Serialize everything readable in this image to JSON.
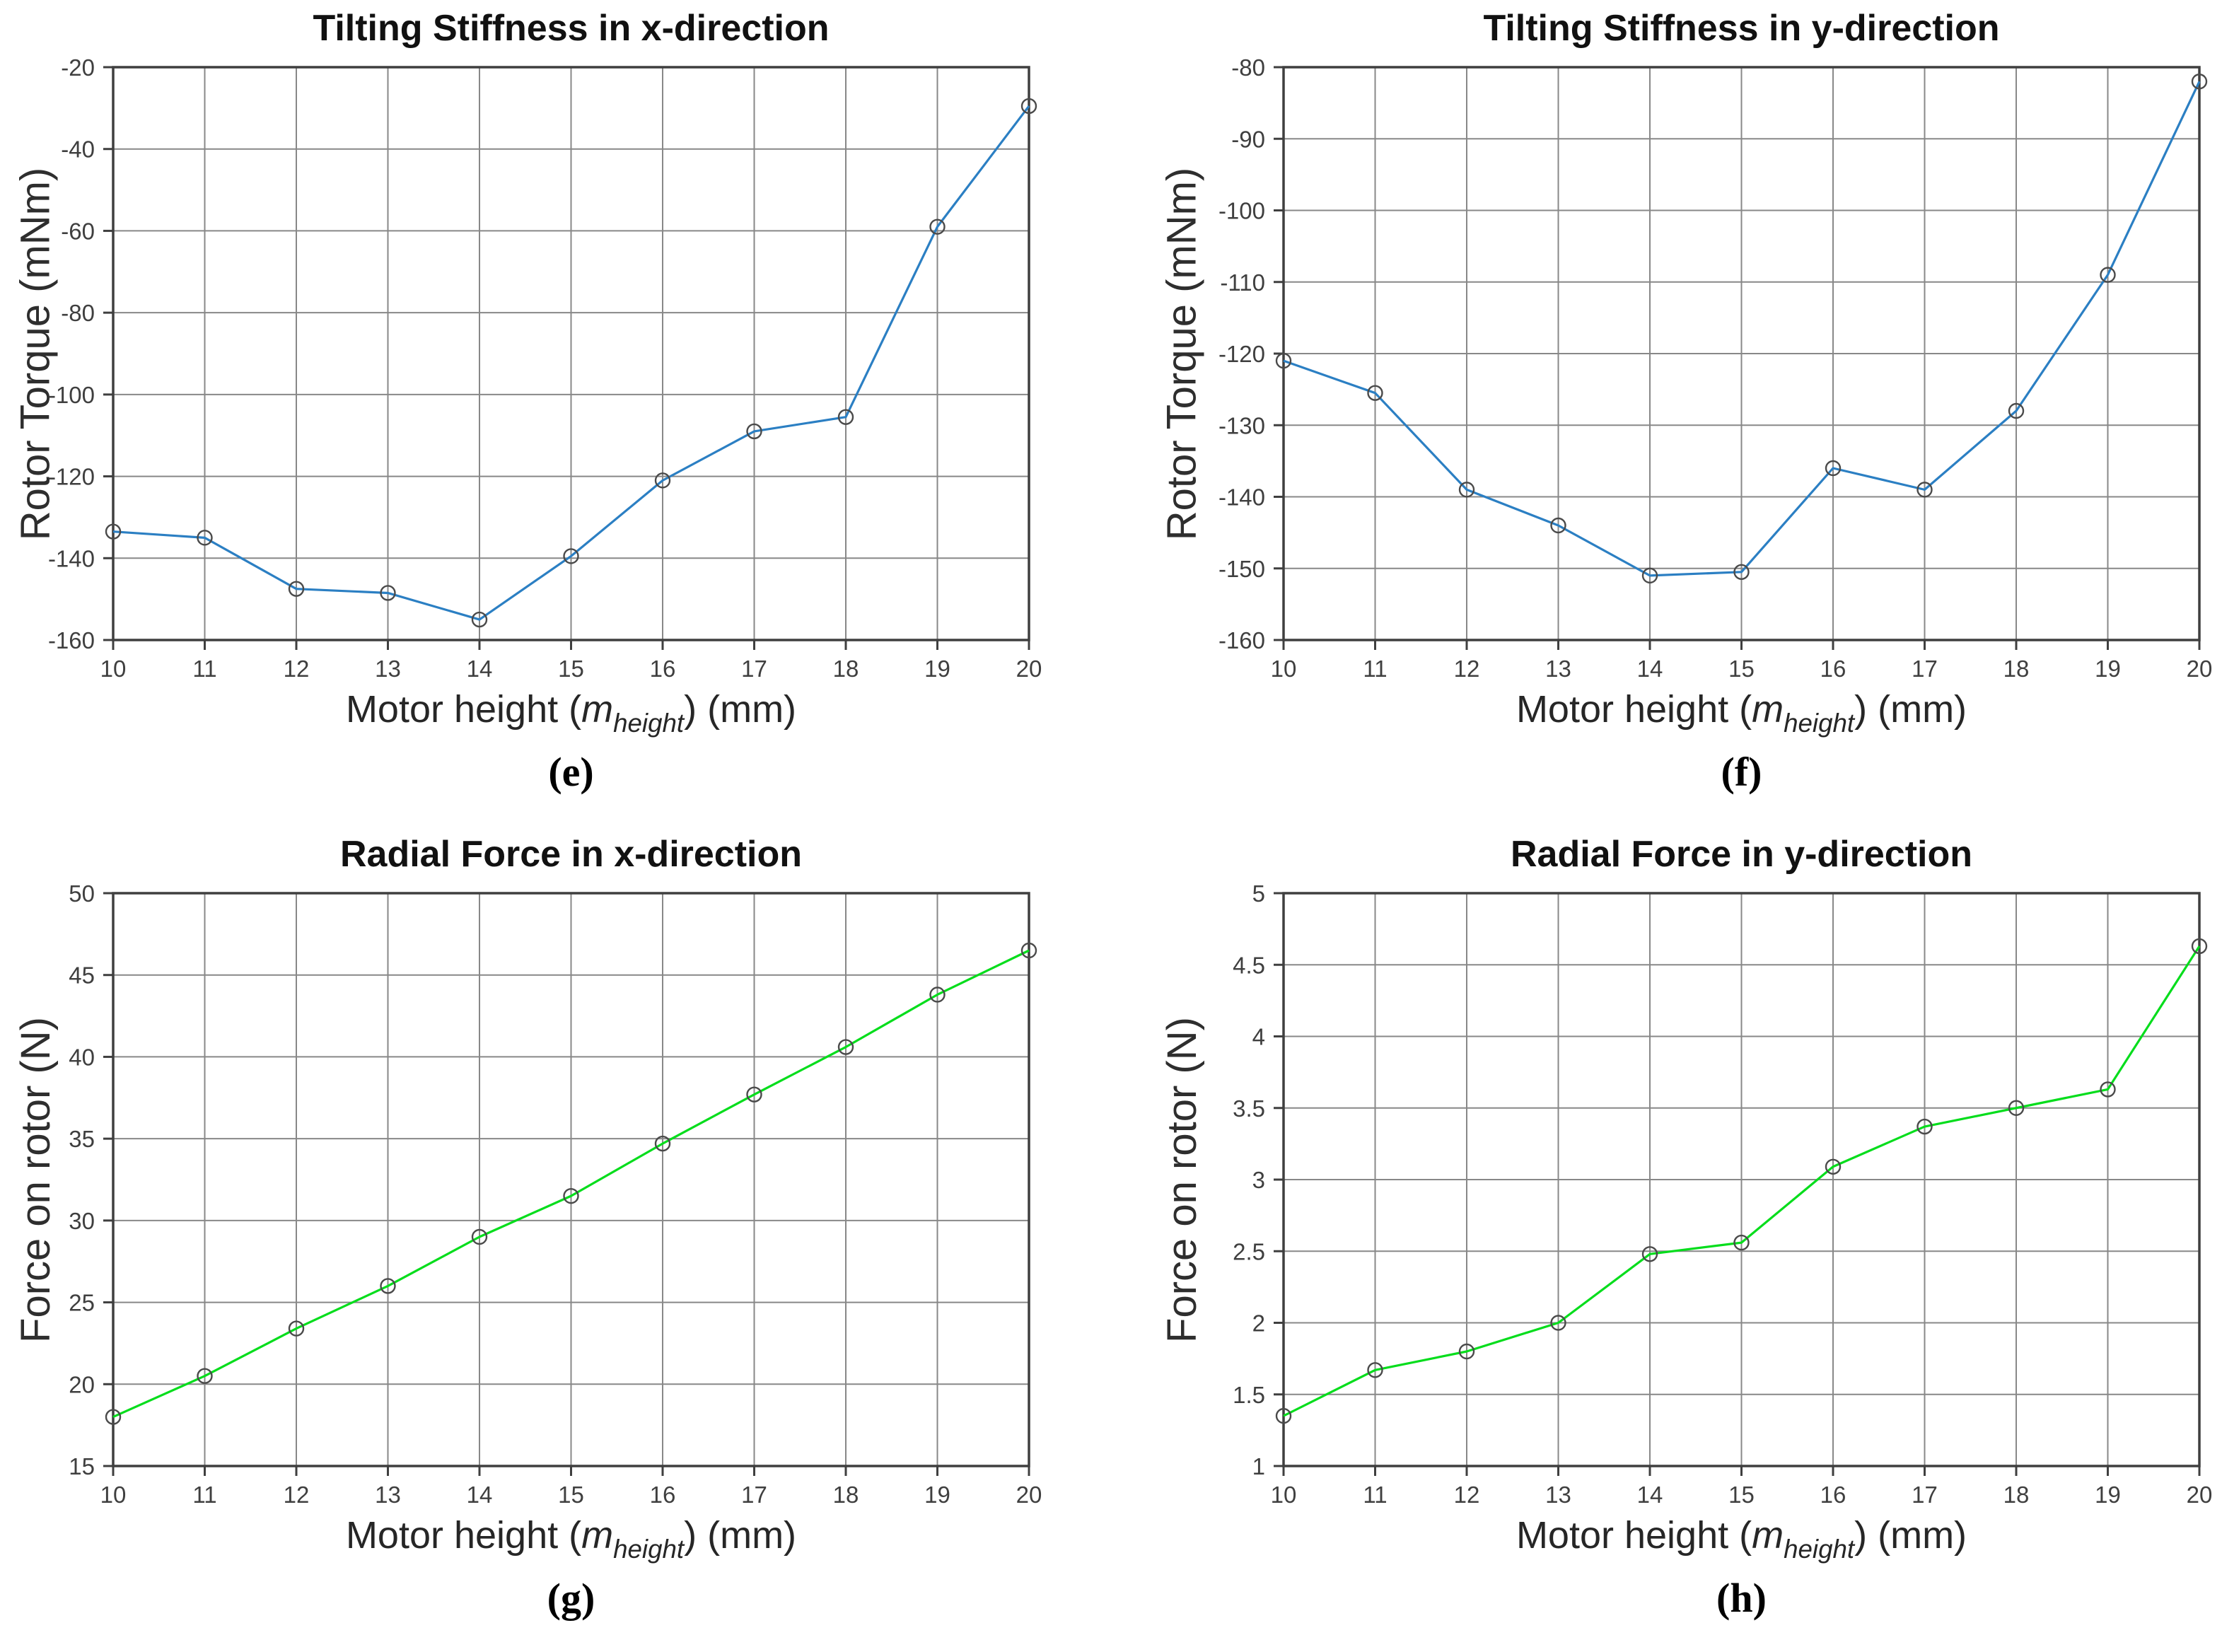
{
  "figure": {
    "background": "#ffffff",
    "grid_color": "#888888",
    "axis_color": "#3f3f3f",
    "tick_label_color": "#3f3f3f",
    "marker_edge_color": "#4a4a4a"
  },
  "chart_data": [
    {
      "panel_label": "(e)",
      "type": "line",
      "title": "Tilting Stiffness in x-direction",
      "ylabel": "Rotor Torque (mNm)",
      "xlabel": {
        "pre": "Motor height (",
        "var": "m",
        "sub": "height",
        "post": ") (mm)"
      },
      "x": [
        10,
        11,
        12,
        13,
        14,
        15,
        16,
        17,
        18,
        19,
        20
      ],
      "y": [
        -133.5,
        -135,
        -147.5,
        -148.5,
        -155,
        -139.5,
        -121,
        -109,
        -105.5,
        -59,
        -29.5
      ],
      "xlim": [
        10,
        20
      ],
      "xtick_step": 1,
      "ylim": [
        -160,
        -20
      ],
      "ytick_step": 20,
      "grid": true,
      "legend": null,
      "line_color": "#2b7fc3",
      "marker": "circle-open"
    },
    {
      "panel_label": "(f)",
      "type": "line",
      "title": "Tilting Stiffness in y-direction",
      "ylabel": "Rotor Torque (mNm)",
      "xlabel": {
        "pre": "Motor height (",
        "var": "m",
        "sub": "height",
        "post": ") (mm)"
      },
      "x": [
        10,
        11,
        12,
        13,
        14,
        15,
        16,
        17,
        18,
        19,
        20
      ],
      "y": [
        -121,
        -125.5,
        -139,
        -144,
        -151,
        -150.5,
        -136,
        -139,
        -128,
        -109,
        -82
      ],
      "xlim": [
        10,
        20
      ],
      "xtick_step": 1,
      "ylim": [
        -160,
        -80
      ],
      "ytick_step": 10,
      "grid": true,
      "legend": null,
      "line_color": "#2b7fc3",
      "marker": "circle-open"
    },
    {
      "panel_label": "(g)",
      "type": "line",
      "title": "Radial Force in x-direction",
      "ylabel": "Force on rotor (N)",
      "xlabel": {
        "pre": "Motor height (",
        "var": "m",
        "sub": "height",
        "post": ") (mm)"
      },
      "x": [
        10,
        11,
        12,
        13,
        14,
        15,
        16,
        17,
        18,
        19,
        20
      ],
      "y": [
        18,
        20.5,
        23.4,
        26,
        29,
        31.5,
        34.7,
        37.7,
        40.6,
        43.8,
        46.5
      ],
      "xlim": [
        10,
        20
      ],
      "xtick_step": 1,
      "ylim": [
        15,
        50
      ],
      "ytick_step": 5,
      "grid": true,
      "legend": null,
      "line_color": "#05dd1c",
      "marker": "circle-open"
    },
    {
      "panel_label": "(h)",
      "type": "line",
      "title": "Radial Force in y-direction",
      "ylabel": "Force on rotor (N)",
      "xlabel": {
        "pre": "Motor height (",
        "var": "m",
        "sub": "height",
        "post": ") (mm)"
      },
      "x": [
        10,
        11,
        12,
        13,
        14,
        15,
        16,
        17,
        18,
        19,
        20
      ],
      "y": [
        1.35,
        1.67,
        1.8,
        2.0,
        2.48,
        2.56,
        3.09,
        3.37,
        3.5,
        3.63,
        4.63
      ],
      "xlim": [
        10,
        20
      ],
      "xtick_step": 1,
      "ylim": [
        1,
        5
      ],
      "ytick_step": 0.5,
      "grid": true,
      "legend": null,
      "line_color": "#05dd1c",
      "marker": "circle-open"
    }
  ]
}
